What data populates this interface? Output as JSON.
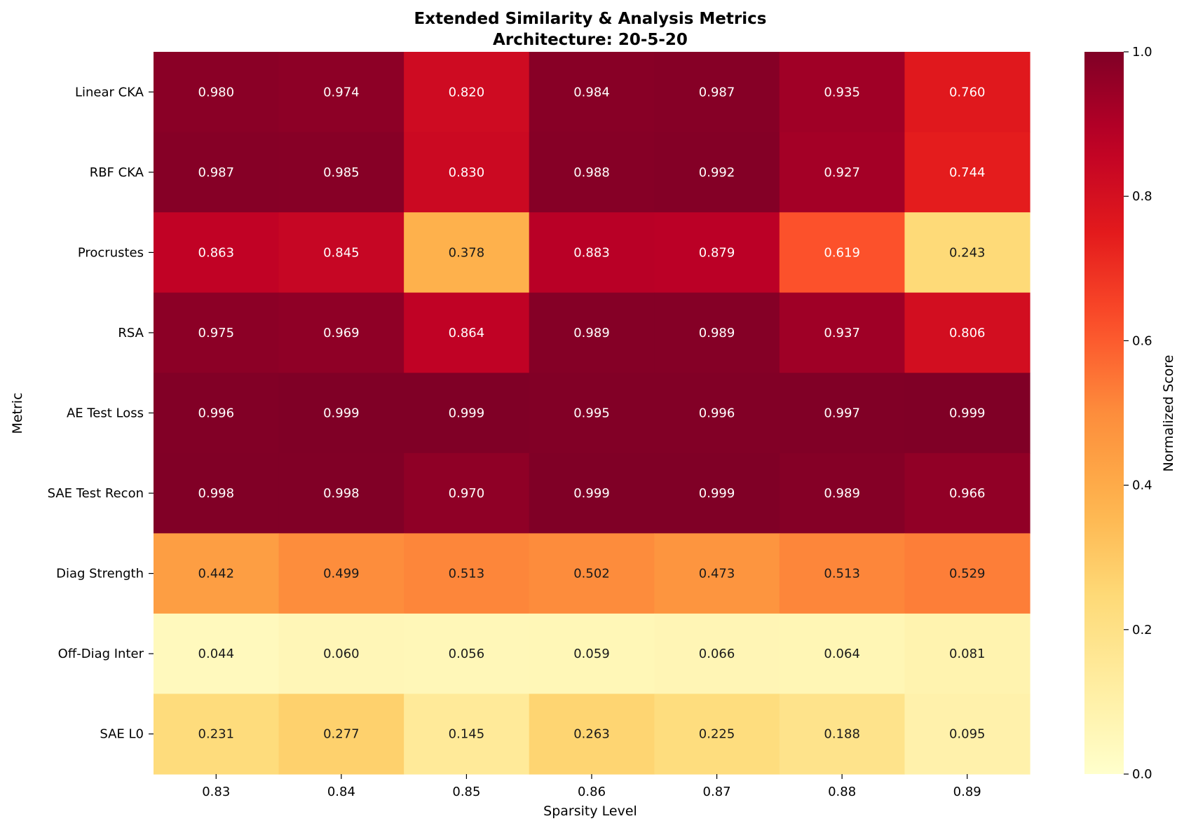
{
  "chart_data": {
    "type": "heatmap",
    "title": "Extended Similarity & Analysis Metrics",
    "subtitle": "Architecture: 20-5-20",
    "xlabel": "Sparsity Level",
    "ylabel": "Metric",
    "colorbar_label": "Normalized Score",
    "colormap": "YlOrRd",
    "color_range": [
      0,
      1
    ],
    "colorbar_ticks": [
      "0.0",
      "0.2",
      "0.4",
      "0.6",
      "0.8",
      "1.0"
    ],
    "columns": [
      "0.83",
      "0.84",
      "0.85",
      "0.86",
      "0.87",
      "0.88",
      "0.89"
    ],
    "rows": [
      "Linear CKA",
      "RBF CKA",
      "Procrustes",
      "RSA",
      "AE Test Loss",
      "SAE Test Recon",
      "Diag Strength",
      "Off-Diag Inter",
      "SAE L0"
    ],
    "values": [
      [
        0.98,
        0.974,
        0.82,
        0.984,
        0.987,
        0.935,
        0.76
      ],
      [
        0.987,
        0.985,
        0.83,
        0.988,
        0.992,
        0.927,
        0.744
      ],
      [
        0.863,
        0.845,
        0.378,
        0.883,
        0.879,
        0.619,
        0.243
      ],
      [
        0.975,
        0.969,
        0.864,
        0.989,
        0.989,
        0.937,
        0.806
      ],
      [
        0.996,
        0.999,
        0.999,
        0.995,
        0.996,
        0.997,
        0.999
      ],
      [
        0.998,
        0.998,
        0.97,
        0.999,
        0.999,
        0.989,
        0.966
      ],
      [
        0.442,
        0.499,
        0.513,
        0.502,
        0.473,
        0.513,
        0.529
      ],
      [
        0.044,
        0.06,
        0.056,
        0.059,
        0.066,
        0.064,
        0.081
      ],
      [
        0.231,
        0.277,
        0.145,
        0.263,
        0.225,
        0.188,
        0.095
      ]
    ],
    "value_labels": [
      [
        "0.980",
        "0.974",
        "0.820",
        "0.984",
        "0.987",
        "0.935",
        "0.760"
      ],
      [
        "0.987",
        "0.985",
        "0.830",
        "0.988",
        "0.992",
        "0.927",
        "0.744"
      ],
      [
        "0.863",
        "0.845",
        "0.378",
        "0.883",
        "0.879",
        "0.619",
        "0.243"
      ],
      [
        "0.975",
        "0.969",
        "0.864",
        "0.989",
        "0.989",
        "0.937",
        "0.806"
      ],
      [
        "0.996",
        "0.999",
        "0.999",
        "0.995",
        "0.996",
        "0.997",
        "0.999"
      ],
      [
        "0.998",
        "0.998",
        "0.970",
        "0.999",
        "0.999",
        "0.989",
        "0.966"
      ],
      [
        "0.442",
        "0.499",
        "0.513",
        "0.502",
        "0.473",
        "0.513",
        "0.529"
      ],
      [
        "0.044",
        "0.060",
        "0.056",
        "0.059",
        "0.066",
        "0.064",
        "0.081"
      ],
      [
        "0.231",
        "0.277",
        "0.145",
        "0.263",
        "0.225",
        "0.188",
        "0.095"
      ]
    ],
    "grid": false,
    "legend": "colorbar-right"
  }
}
